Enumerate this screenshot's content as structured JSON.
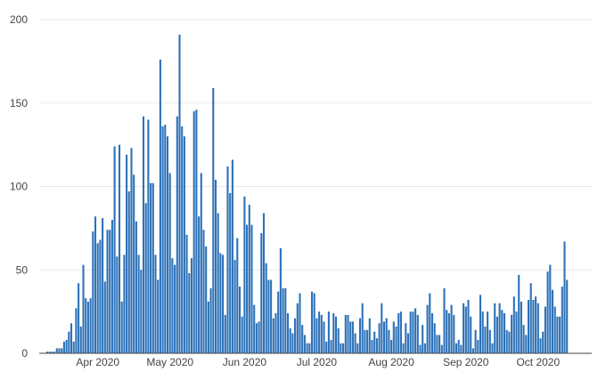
{
  "chart_data": {
    "type": "bar",
    "title": "",
    "xlabel": "",
    "ylabel": "",
    "start_date": "2020-03-11",
    "ylim": [
      0,
      200
    ],
    "y_ticks": [
      0,
      50,
      100,
      150,
      200
    ],
    "y_tick_labels": [
      "0",
      "50",
      "100",
      "150",
      "200"
    ],
    "x_ticks": [
      "2020-04-01",
      "2020-05-01",
      "2020-06-01",
      "2020-07-01",
      "2020-08-01",
      "2020-09-01",
      "2020-10-01"
    ],
    "x_tick_labels": [
      "Apr 2020",
      "May 2020",
      "Jun 2020",
      "Jul 2020",
      "Aug 2020",
      "Sep 2020",
      "Oct 2020"
    ],
    "grid": true,
    "bar_color": "#2e72b8",
    "values": [
      1,
      1,
      1,
      1,
      3,
      3,
      3,
      7,
      8,
      13,
      18,
      7,
      27,
      42,
      16,
      53,
      33,
      31,
      33,
      73,
      82,
      66,
      68,
      81,
      43,
      74,
      74,
      80,
      124,
      58,
      125,
      31,
      59,
      119,
      97,
      123,
      107,
      79,
      59,
      50,
      142,
      90,
      140,
      102,
      102,
      59,
      44,
      176,
      136,
      137,
      130,
      108,
      57,
      53,
      142,
      191,
      136,
      130,
      71,
      48,
      57,
      145,
      146,
      82,
      108,
      74,
      64,
      31,
      39,
      159,
      104,
      84,
      60,
      59,
      23,
      112,
      96,
      116,
      56,
      69,
      40,
      22,
      94,
      77,
      89,
      77,
      29,
      18,
      19,
      72,
      84,
      54,
      44,
      44,
      21,
      24,
      37,
      63,
      39,
      39,
      24,
      15,
      12,
      21,
      30,
      36,
      17,
      11,
      6,
      6,
      37,
      36,
      21,
      25,
      23,
      19,
      7,
      25,
      8,
      24,
      22,
      15,
      6,
      6,
      23,
      23,
      19,
      19,
      12,
      6,
      21,
      30,
      14,
      14,
      21,
      8,
      13,
      9,
      18,
      30,
      19,
      21,
      14,
      8,
      19,
      16,
      24,
      25,
      6,
      18,
      12,
      25,
      25,
      27,
      23,
      5,
      17,
      6,
      29,
      36,
      24,
      18,
      11,
      11,
      5,
      39,
      26,
      24,
      29,
      23,
      6,
      8,
      5,
      30,
      28,
      32,
      22,
      3,
      14,
      8,
      35,
      25,
      16,
      25,
      14,
      6,
      30,
      22,
      30,
      26,
      24,
      14,
      13,
      23,
      34,
      25,
      47,
      31,
      17,
      11,
      32,
      42,
      32,
      34,
      30,
      9,
      13,
      28,
      49,
      53,
      38,
      28,
      22,
      22,
      40,
      67,
      44
    ]
  }
}
